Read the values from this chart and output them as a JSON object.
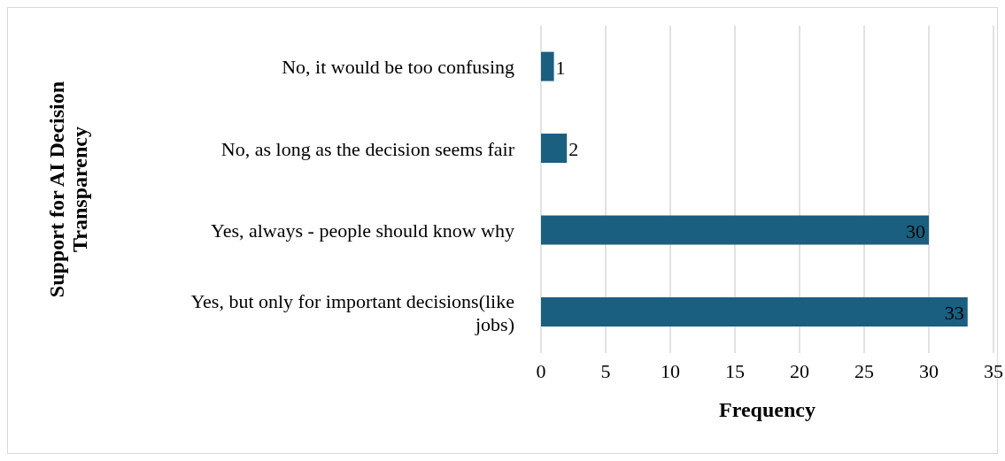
{
  "chart_data": {
    "type": "bar",
    "orientation": "horizontal",
    "ylabel": "Support for AI Decision Transparency",
    "xlabel": "Frequency",
    "categories": [
      "No, it would be too confusing",
      "No, as long as the decision seems fair",
      "Yes, always - people should know why",
      "Yes, but only for important decisions(like jobs)"
    ],
    "values": [
      1,
      2,
      30,
      33
    ],
    "color": "#1a5f80",
    "data_labels": true,
    "xlim": [
      0,
      35
    ],
    "xticks": [
      0,
      5,
      10,
      15,
      20,
      25,
      30,
      35
    ],
    "grid": "x"
  }
}
